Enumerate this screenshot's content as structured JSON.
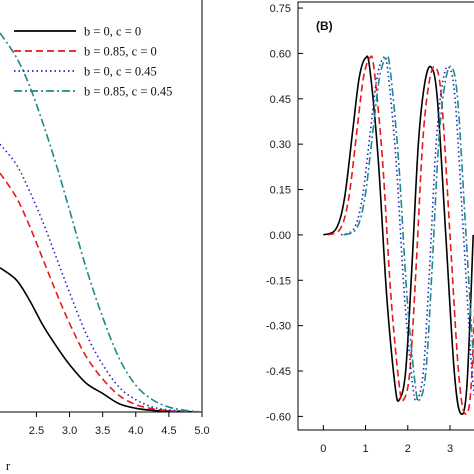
{
  "chart_data": [
    {
      "type": "line",
      "panel_label": "",
      "xlabel": "r",
      "ylabel": "",
      "xlim": [
        1.95,
        5.0
      ],
      "ylim": [
        0.0,
        1.0
      ],
      "x_ticks": [
        "2.5",
        "3.0",
        "3.5",
        "4.0",
        "4.5",
        "5.0"
      ],
      "legend": {
        "position": "top-right",
        "entries": [
          "b = 0, c = 0",
          "b = 0.85, c = 0",
          "b = 0, c = 0.45",
          "b = 0.85, c = 0.45"
        ]
      },
      "series": [
        {
          "name": "b = 0, c = 0",
          "color": "#000000",
          "dash": "solid",
          "x": [
            1.95,
            2.2,
            2.4,
            2.6,
            2.8,
            3.0,
            3.25,
            3.5,
            3.75,
            4.0,
            4.25,
            4.5,
            4.75,
            5.0
          ],
          "y": [
            0.35,
            0.32,
            0.27,
            0.21,
            0.16,
            0.115,
            0.07,
            0.045,
            0.02,
            0.009,
            0.004,
            0.002,
            0.001,
            0.0
          ]
        },
        {
          "name": "b = 0.85, c = 0",
          "color": "#e6191c",
          "dash": "dash",
          "x": [
            1.95,
            2.2,
            2.4,
            2.6,
            2.8,
            3.0,
            3.25,
            3.5,
            3.75,
            4.0,
            4.25,
            4.5,
            4.75,
            5.0
          ],
          "y": [
            0.58,
            0.52,
            0.45,
            0.37,
            0.29,
            0.215,
            0.135,
            0.08,
            0.04,
            0.018,
            0.008,
            0.003,
            0.001,
            0.0
          ]
        },
        {
          "name": "b = 0, c = 0.45",
          "color": "#2323c8",
          "dash": "dot",
          "x": [
            1.95,
            2.2,
            2.4,
            2.6,
            2.8,
            3.0,
            3.25,
            3.5,
            3.75,
            4.0,
            4.25,
            4.5,
            4.75,
            5.0
          ],
          "y": [
            0.65,
            0.6,
            0.535,
            0.46,
            0.375,
            0.29,
            0.19,
            0.115,
            0.06,
            0.03,
            0.012,
            0.005,
            0.002,
            0.0
          ]
        },
        {
          "name": "b = 0.85, c = 0.45",
          "color": "#1f8a8a",
          "dash": "dashdot",
          "x": [
            1.95,
            2.2,
            2.4,
            2.6,
            2.8,
            3.0,
            3.25,
            3.5,
            3.75,
            4.0,
            4.25,
            4.5,
            4.75,
            5.0
          ],
          "y": [
            0.92,
            0.86,
            0.79,
            0.7,
            0.6,
            0.49,
            0.35,
            0.23,
            0.13,
            0.065,
            0.03,
            0.012,
            0.004,
            0.0
          ]
        }
      ]
    },
    {
      "type": "line",
      "panel_label": "(B)",
      "xlabel": "",
      "ylabel": "",
      "xlim": [
        -0.6,
        3.9
      ],
      "ylim": [
        -0.645,
        0.77
      ],
      "x_tick_values": [
        0,
        1,
        2,
        3
      ],
      "x_ticks": [
        "0",
        "1",
        "2",
        "3"
      ],
      "y_tick_values": [
        0.75,
        0.6,
        0.45,
        0.3,
        0.15,
        0.0,
        -0.15,
        -0.3,
        -0.45,
        -0.6
      ],
      "y_ticks": [
        "0.75",
        "0.60",
        "0.45",
        "0.30",
        "0.15",
        "0.00",
        "-0.15",
        "-0.30",
        "-0.45",
        "-0.60"
      ],
      "series": [
        {
          "name": "b = 0, c = 0",
          "color": "#000000",
          "dash": "solid",
          "x0": 0.0
        },
        {
          "name": "b = 0.85, c = 0",
          "color": "#e6191c",
          "dash": "dash",
          "x0": 0.1
        },
        {
          "name": "b = 0, c = 0.45",
          "color": "#2323c8",
          "dash": "dot",
          "x0": 0.42
        },
        {
          "name": "b = 0.85, c = 0.45",
          "color": "#1f8a8a",
          "dash": "dashdot",
          "x0": 0.48
        }
      ],
      "waveform": {
        "x": [
          0,
          0.3,
          0.5,
          0.7,
          0.85,
          1.0,
          1.1,
          1.3,
          1.5,
          1.7,
          1.8,
          1.95,
          2.1,
          2.25,
          2.4,
          2.55,
          2.7,
          2.9,
          3.1,
          3.25,
          3.4,
          3.55
        ],
        "y": [
          0.0,
          0.02,
          0.12,
          0.35,
          0.52,
          0.585,
          0.55,
          0.25,
          -0.2,
          -0.5,
          -0.545,
          -0.45,
          -0.1,
          0.3,
          0.5,
          0.555,
          0.45,
          0.0,
          -0.45,
          -0.59,
          -0.5,
          0.0
        ]
      }
    }
  ]
}
